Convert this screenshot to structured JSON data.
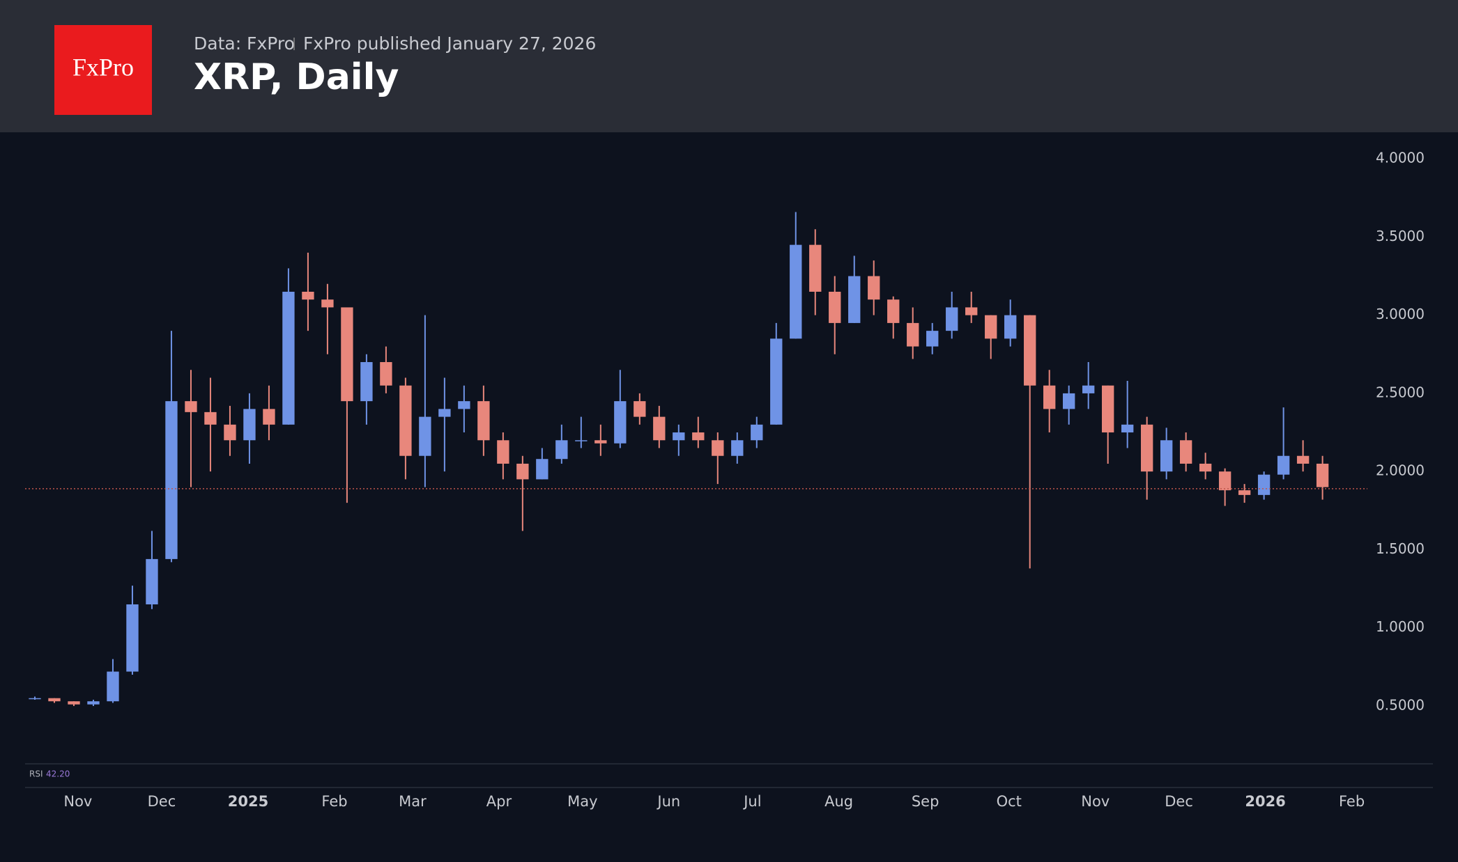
{
  "header": {
    "logo": "FxPro",
    "source": "Data: FxPro",
    "published": "FxPro published January 27, 2026"
  },
  "chart_data": {
    "type": "candlestick",
    "title": "XRP, Daily",
    "open": [
      0.55,
      0.55,
      0.53,
      0.51,
      0.53,
      0.72,
      1.15,
      1.44,
      2.45,
      2.38,
      2.3,
      2.2,
      2.4,
      2.3,
      3.15,
      3.1,
      3.05,
      2.45,
      2.7,
      2.55,
      2.1,
      2.35,
      2.4,
      2.45,
      2.2,
      2.05,
      1.95,
      2.08,
      2.2,
      2.2,
      2.18,
      2.45,
      2.35,
      2.2,
      2.25,
      2.2,
      2.1,
      2.2,
      2.3,
      2.85,
      3.45,
      3.15,
      2.95,
      3.25,
      3.1,
      2.95,
      2.8,
      2.9,
      3.05,
      3.0,
      2.85,
      3.0,
      2.55,
      2.4,
      2.5,
      2.55,
      2.25,
      2.3,
      2.0,
      2.2,
      2.05,
      2.0,
      1.88,
      1.85,
      1.98,
      2.1,
      2.05
    ],
    "high": [
      0.56,
      0.55,
      0.53,
      0.54,
      0.8,
      1.27,
      1.62,
      2.9,
      2.65,
      2.6,
      2.42,
      2.5,
      2.55,
      3.3,
      3.4,
      3.2,
      3.05,
      2.75,
      2.8,
      2.6,
      3.0,
      2.6,
      2.55,
      2.55,
      2.25,
      2.1,
      2.15,
      2.3,
      2.35,
      2.3,
      2.65,
      2.5,
      2.42,
      2.3,
      2.35,
      2.25,
      2.25,
      2.35,
      2.95,
      3.66,
      3.55,
      3.25,
      3.38,
      3.35,
      3.12,
      3.05,
      2.95,
      3.15,
      3.15,
      3.0,
      3.1,
      3.0,
      2.65,
      2.55,
      2.7,
      2.55,
      2.58,
      2.35,
      2.28,
      2.25,
      2.12,
      2.02,
      1.92,
      2.0,
      2.41,
      2.2,
      2.1
    ],
    "low": [
      0.54,
      0.52,
      0.5,
      0.5,
      0.52,
      0.7,
      1.12,
      1.42,
      1.9,
      2.0,
      2.1,
      2.05,
      2.2,
      2.3,
      2.9,
      2.75,
      1.8,
      2.3,
      2.5,
      1.95,
      1.9,
      2.0,
      2.25,
      2.1,
      1.95,
      1.62,
      1.95,
      2.05,
      2.15,
      2.1,
      2.15,
      2.3,
      2.15,
      2.1,
      2.15,
      1.92,
      2.05,
      2.15,
      2.3,
      2.85,
      3.0,
      2.75,
      2.95,
      3.0,
      2.85,
      2.72,
      2.75,
      2.85,
      2.95,
      2.72,
      2.8,
      1.38,
      2.25,
      2.3,
      2.4,
      2.05,
      2.15,
      1.82,
      1.95,
      2.0,
      1.95,
      1.78,
      1.8,
      1.82,
      1.95,
      2.0,
      1.82
    ],
    "close": [
      0.55,
      0.53,
      0.51,
      0.53,
      0.72,
      1.15,
      1.44,
      2.45,
      2.38,
      2.3,
      2.2,
      2.4,
      2.3,
      3.15,
      3.1,
      3.05,
      2.45,
      2.7,
      2.55,
      2.1,
      2.35,
      2.4,
      2.45,
      2.2,
      2.05,
      1.95,
      2.08,
      2.2,
      2.2,
      2.18,
      2.45,
      2.35,
      2.2,
      2.25,
      2.2,
      2.1,
      2.2,
      2.3,
      2.85,
      3.45,
      3.15,
      2.95,
      3.25,
      3.1,
      2.95,
      2.8,
      2.9,
      3.05,
      3.0,
      2.85,
      3.0,
      2.55,
      2.4,
      2.5,
      2.55,
      2.25,
      2.3,
      2.0,
      2.2,
      2.05,
      2.0,
      1.88,
      1.85,
      1.98,
      2.1,
      2.05,
      1.9
    ],
    "up_color": "#6f93e6",
    "down_color": "#e8877c",
    "last_price": 1.89,
    "last_price_color": "#c0554c",
    "ylim": [
      0.13,
      4.17
    ],
    "yticks": [
      {
        "value": 0.5,
        "label": "0.5000"
      },
      {
        "value": 1.0,
        "label": "1.0000"
      },
      {
        "value": 1.5,
        "label": "1.5000"
      },
      {
        "value": 2.0,
        "label": "2.0000"
      },
      {
        "value": 2.5,
        "label": "2.5000"
      },
      {
        "value": 3.0,
        "label": "3.0000"
      },
      {
        "value": 3.5,
        "label": "3.5000"
      },
      {
        "value": 4.0,
        "label": "4.0000"
      }
    ],
    "xlim": [
      0,
      67.3
    ],
    "xticks": [
      {
        "value": 2.71,
        "label": "Nov"
      },
      {
        "value": 7.0,
        "label": "Dec"
      },
      {
        "value": 11.43,
        "label": "2025"
      },
      {
        "value": 15.86,
        "label": "Feb"
      },
      {
        "value": 19.86,
        "label": "Mar"
      },
      {
        "value": 24.29,
        "label": "Apr"
      },
      {
        "value": 28.57,
        "label": "May"
      },
      {
        "value": 33.0,
        "label": "Jun"
      },
      {
        "value": 37.29,
        "label": "Jul"
      },
      {
        "value": 41.71,
        "label": "Aug"
      },
      {
        "value": 46.14,
        "label": "Sep"
      },
      {
        "value": 50.43,
        "label": "Oct"
      },
      {
        "value": 54.86,
        "label": "Nov"
      },
      {
        "value": 59.14,
        "label": "Dec"
      },
      {
        "value": 63.57,
        "label": "2026"
      },
      {
        "value": 68.0,
        "label": "Feb"
      }
    ],
    "indicator": {
      "name": "RSI",
      "value": "42.20"
    }
  }
}
